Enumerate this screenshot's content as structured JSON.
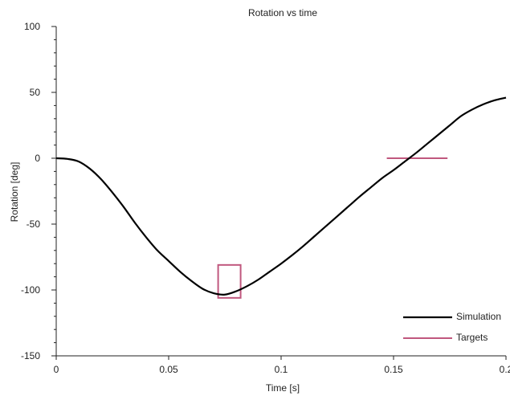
{
  "chart_data": {
    "type": "line",
    "title": "Rotation vs time",
    "xlabel": "Time [s]",
    "ylabel": "Rotation [deg]",
    "xlim": [
      0,
      0.2
    ],
    "ylim": [
      -150,
      100
    ],
    "x_ticks": [
      0,
      0.05,
      0.1,
      0.15,
      0.2
    ],
    "x_tick_labels": [
      "0",
      "0.05",
      "0.1",
      "0.15",
      "0.2"
    ],
    "y_ticks": [
      100,
      50,
      0,
      -50,
      -100,
      -150
    ],
    "y_tick_labels": [
      "100",
      "50",
      "0",
      "-50",
      "-100",
      "-150"
    ],
    "y_minor_step": 10,
    "grid": false,
    "legend_position": "bottom-right",
    "series": [
      {
        "name": "Simulation",
        "color": "#000000",
        "x": [
          0,
          0.005,
          0.01,
          0.015,
          0.02,
          0.025,
          0.03,
          0.035,
          0.04,
          0.045,
          0.05,
          0.055,
          0.06,
          0.065,
          0.07,
          0.075,
          0.08,
          0.085,
          0.09,
          0.095,
          0.1,
          0.105,
          0.11,
          0.115,
          0.12,
          0.125,
          0.13,
          0.135,
          0.14,
          0.145,
          0.15,
          0.155,
          0.16,
          0.165,
          0.17,
          0.175,
          0.18,
          0.185,
          0.19,
          0.195,
          0.2
        ],
        "y": [
          0,
          -0.5,
          -2.5,
          -8,
          -16,
          -26,
          -37,
          -49,
          -60,
          -70,
          -78,
          -86,
          -93,
          -99,
          -102.5,
          -103.5,
          -101,
          -97,
          -92,
          -86,
          -80,
          -73.5,
          -66.5,
          -59,
          -51.5,
          -44,
          -36.5,
          -29,
          -22,
          -15,
          -9,
          -2.5,
          4,
          11,
          18,
          25,
          32,
          37,
          41,
          44,
          46
        ]
      }
    ],
    "targets": {
      "name": "Targets",
      "color": "#c0587e",
      "items": [
        {
          "shape": "box",
          "x_range": [
            0.072,
            0.082
          ],
          "y_range": [
            -106,
            -81
          ]
        },
        {
          "shape": "line",
          "x_range": [
            0.147,
            0.174
          ],
          "y": 0
        }
      ]
    }
  }
}
